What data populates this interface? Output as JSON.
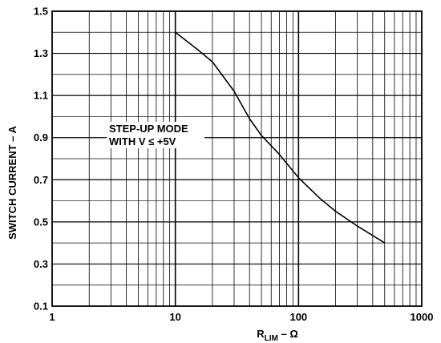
{
  "chart_data": {
    "type": "line",
    "x_scale": "log",
    "xlim": [
      1,
      1000
    ],
    "ylim": [
      0.1,
      1.5
    ],
    "x_ticks": [
      "1",
      "10",
      "100",
      "1000"
    ],
    "y_ticks": [
      "0.1",
      "0.3",
      "0.5",
      "0.7",
      "0.9",
      "1.1",
      "1.3",
      "1.5"
    ],
    "xlabel_main": "R",
    "xlabel_sub": "LIM",
    "xlabel_rest": " – Ω",
    "ylabel": "SWITCH CURRENT – A",
    "annotation_line1": "STEP-UP MODE",
    "annotation_line2": "WITH V ≤ +5V",
    "grid": true,
    "series": [
      {
        "x": [
          10,
          15,
          20,
          30,
          40,
          50,
          70,
          100,
          150,
          200,
          300,
          500
        ],
        "y": [
          1.4,
          1.32,
          1.26,
          1.12,
          0.99,
          0.91,
          0.82,
          0.71,
          0.61,
          0.55,
          0.48,
          0.4
        ]
      }
    ]
  }
}
